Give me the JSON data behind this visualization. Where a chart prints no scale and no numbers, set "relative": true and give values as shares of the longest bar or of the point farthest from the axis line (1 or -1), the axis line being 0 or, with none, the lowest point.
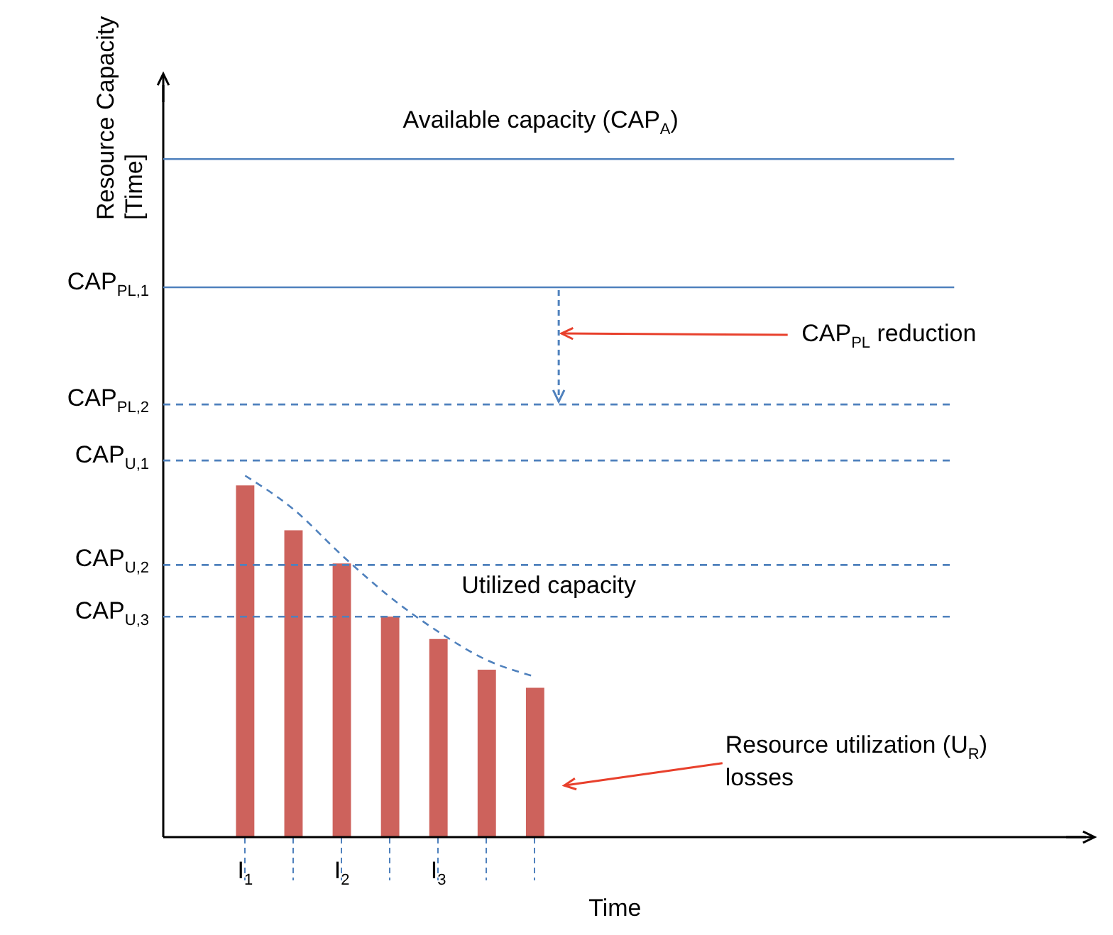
{
  "chart_data": {
    "type": "bar",
    "relative": true,
    "xlabel": "Time",
    "categories": [
      "I$_{1}$",
      null,
      "I$_{2}$",
      null,
      "I$_{3}$",
      null,
      null
    ],
    "series": [
      {
        "color": "#cd625c",
        "values": [
          0.973,
          0.849,
          0.757,
          0.61,
          0.548,
          0.463,
          0.413
        ]
      },
      {
        "type": "line",
        "color": "#4f81bd",
        "values": [
          1,
          0.907,
          0.78,
          0.664,
          0.568,
          0.49,
          0.444
        ]
      }
    ],
    "line_style": "dashed",
    "ref_lines": [
      {
        "axis": "y",
        "value": 1.876,
        "label": null,
        "color": "#4f81bd",
        "line_style": "solid"
      },
      {
        "axis": "y",
        "value": 1.521,
        "label": "CAP$_{PL,1}$",
        "color": "#4f81bd",
        "line_style": "solid"
      },
      {
        "axis": "y",
        "value": 1.197,
        "label": "CAP$_{PL,2}$",
        "color": "#4f81bd",
        "line_style": "dashed"
      },
      {
        "axis": "y",
        "value": 1.042,
        "label": "CAP$_{U,1}$",
        "color": "#4f81bd",
        "line_style": "dashed"
      },
      {
        "axis": "y",
        "value": 0.753,
        "label": "CAP$_{U,2}$",
        "color": "#4f81bd",
        "line_style": "dashed"
      },
      {
        "axis": "y",
        "value": 0.61,
        "label": "CAP$_{U,3}$",
        "color": "#4f81bd",
        "line_style": "dashed"
      }
    ],
    "annotations": [
      "Available capacity  (CAP$_{A}$)",
      "CAP$_{PL}$ reduction",
      "Utilized capacity",
      "Resource utilization (U$_{R}$) losses",
      "Resource Capacity [Time]"
    ]
  }
}
